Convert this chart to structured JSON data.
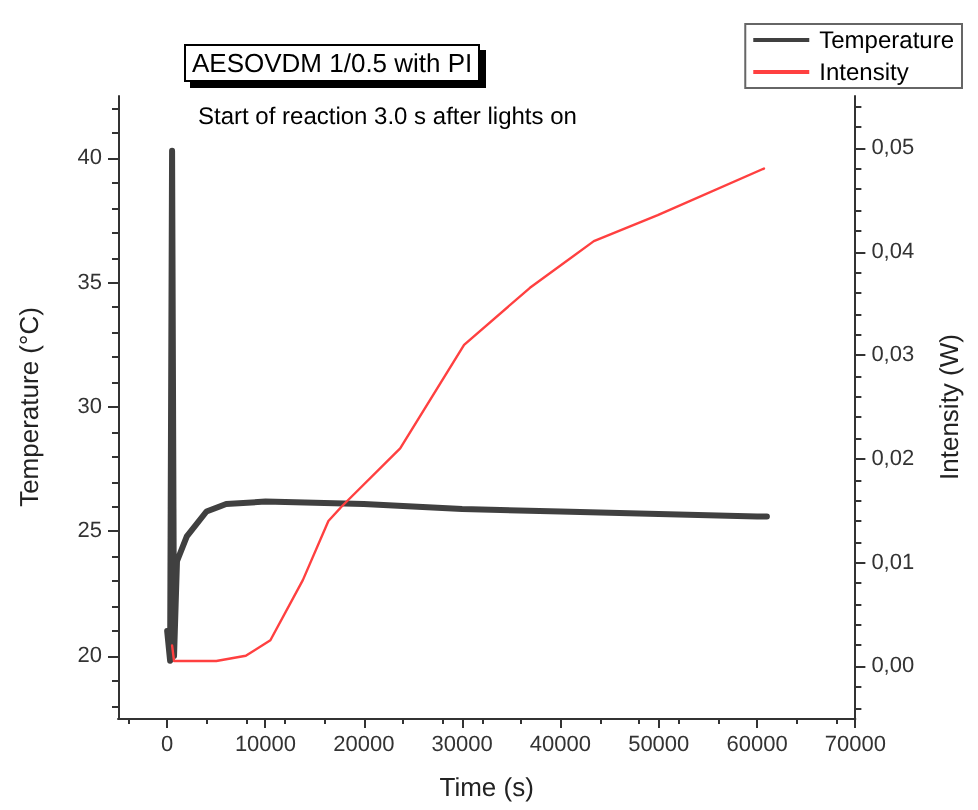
{
  "chart_data": {
    "type": "line",
    "title": "AESOVDM 1/0.5 with PI",
    "annotations": [
      "Start of reaction 3.0 s after lights on"
    ],
    "xlabel": "Time (s)",
    "ylabel": "Temperature (°C)",
    "y2label": "Intensity (W)",
    "xlim": [
      -5000,
      70000
    ],
    "xticks": [
      0,
      10000,
      20000,
      30000,
      40000,
      50000,
      60000,
      70000
    ],
    "ylim": [
      17.5,
      42.5
    ],
    "yticks": [
      20,
      25,
      30,
      35,
      40
    ],
    "y2lim": [
      -0.005,
      0.055
    ],
    "y2ticks": [
      {
        "value": 0,
        "label": "0,00"
      },
      {
        "value": 0.01,
        "label": "0,01"
      },
      {
        "value": 0.02,
        "label": "0,02"
      },
      {
        "value": 0.03,
        "label": "0,03"
      },
      {
        "value": 0.04,
        "label": "0,04"
      },
      {
        "value": 0.05,
        "label": "0,05"
      }
    ],
    "grid": false,
    "legend": "top right",
    "marker": "none",
    "series": [
      {
        "name": "Temperature",
        "color": "#404040",
        "x": [
          0,
          300,
          500,
          700,
          1000,
          2000,
          4000,
          6000,
          10000,
          20000,
          30000,
          40000,
          50000,
          60000,
          61000
        ],
        "values": [
          21,
          19.8,
          40.3,
          20,
          23.8,
          24.8,
          25.8,
          26.1,
          26.2,
          26.1,
          25.9,
          25.8,
          25.7,
          25.6,
          25.6
        ]
      },
      {
        "name": "Intensity",
        "color": "#ff4040",
        "axis": "y2",
        "x": [
          500,
          700,
          5000,
          8000,
          10500,
          13800,
          16400,
          17750,
          23700,
          30200,
          36900,
          43400,
          49900,
          60700
        ],
        "values": [
          0.002,
          0.0005,
          0.0005,
          0.001,
          0.0025,
          0.0083,
          0.014,
          0.0154,
          0.021,
          0.031,
          0.0365,
          0.041,
          0.0435,
          0.048
        ]
      }
    ]
  }
}
